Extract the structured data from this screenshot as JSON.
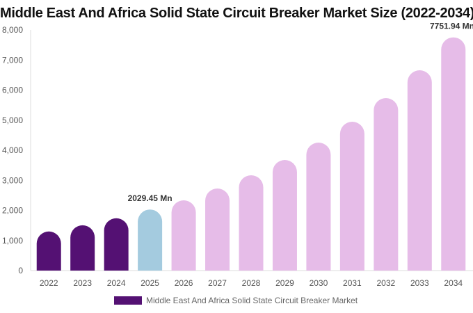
{
  "chart_data": {
    "type": "bar",
    "title": "Middle East And Africa Solid State Circuit Breaker Market Size (2022-2034)",
    "categories": [
      "2022",
      "2023",
      "2024",
      "2025",
      "2026",
      "2027",
      "2028",
      "2029",
      "2030",
      "2031",
      "2032",
      "2033",
      "2034"
    ],
    "series": [
      {
        "name": "Middle East And Africa Solid State Circuit Breaker Market",
        "values": [
          1300,
          1505,
          1740,
          2029.45,
          2335,
          2728,
          3168,
          3676,
          4254,
          4948,
          5734,
          6659,
          7751.94
        ]
      }
    ],
    "data_labels": [
      {
        "category": "2025",
        "text": "2029.45 Mn"
      },
      {
        "category": "2034",
        "text": "7751.94 Mn"
      }
    ],
    "ylim": [
      0,
      8000
    ],
    "yticks": [
      "0",
      "1,000",
      "2,000",
      "3,000",
      "4,000",
      "5,000",
      "6,000",
      "7,000",
      "8,000"
    ],
    "ytick_values": [
      0,
      1000,
      2000,
      3000,
      4000,
      5000,
      6000,
      7000,
      8000
    ],
    "grid": false,
    "legend_position": "bottom",
    "colors": {
      "historical": "#541173",
      "current": "#a4cbdf",
      "forecast": "#e6bce8"
    },
    "xlabel": "",
    "ylabel": ""
  }
}
